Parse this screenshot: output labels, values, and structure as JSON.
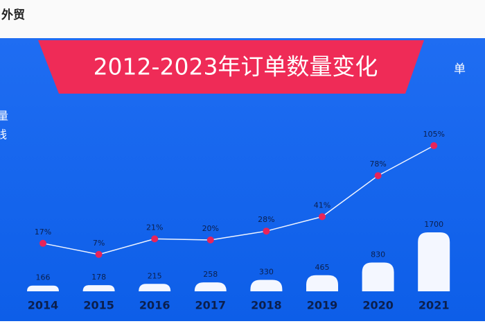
{
  "header": {
    "brand": "外贸"
  },
  "chart_data": {
    "type": "bar_line",
    "title": "2012-2023年订单数量变化",
    "unit_label": "单",
    "side_labels": [
      "量",
      "线"
    ],
    "categories": [
      "2014",
      "2015",
      "2016",
      "2017",
      "2018",
      "2019",
      "2020",
      "2021"
    ],
    "series": [
      {
        "type": "bar",
        "color": "#f4f7ff",
        "values": [
          166,
          178,
          215,
          258,
          330,
          465,
          830,
          1700
        ]
      },
      {
        "type": "line",
        "axis": "y2",
        "color": "#f0f4ff",
        "marker_color": "#e8245a",
        "values": [
          17,
          7,
          21,
          20,
          28,
          41,
          78,
          105
        ],
        "value_labels": [
          "17%",
          "7%",
          "21%",
          "20%",
          "28%",
          "41%",
          "78%",
          "105%"
        ]
      }
    ],
    "ylim": [
      0,
      1800
    ],
    "y2lim": [
      0,
      110
    ]
  }
}
